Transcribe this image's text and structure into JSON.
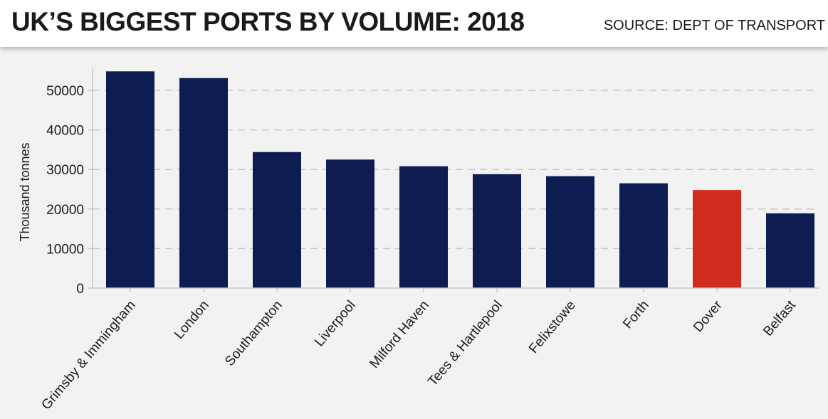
{
  "header": {
    "title": "UK’S BIGGEST PORTS BY VOLUME: 2018",
    "source": "SOURCE: DEPT OF TRANSPORT"
  },
  "colors": {
    "bar": "#0d1d52",
    "highlight": "#d12b20",
    "grid": "#c8c8c8",
    "axis_text": "#1a1a1a"
  },
  "chart_data": {
    "type": "bar",
    "title": "UK’S BIGGEST PORTS BY VOLUME: 2018",
    "xlabel": "",
    "ylabel": "Thousand tonnes",
    "ylim": [
      0,
      55000
    ],
    "yticks": [
      0,
      10000,
      20000,
      30000,
      40000,
      50000
    ],
    "ytick_labels": [
      "0",
      "10000",
      "20000",
      "30000",
      "40000",
      "50000"
    ],
    "grid": true,
    "categories": [
      "Grimsby & Immingham",
      "London",
      "Southampton",
      "Liverpool",
      "Milford Haven",
      "Tees & Hartlepool",
      "Felixstowe",
      "Forth",
      "Dover",
      "Belfast"
    ],
    "values": [
      54800,
      53100,
      34400,
      32500,
      30800,
      28800,
      28300,
      26500,
      24800,
      18900
    ],
    "highlight": "Dover"
  }
}
